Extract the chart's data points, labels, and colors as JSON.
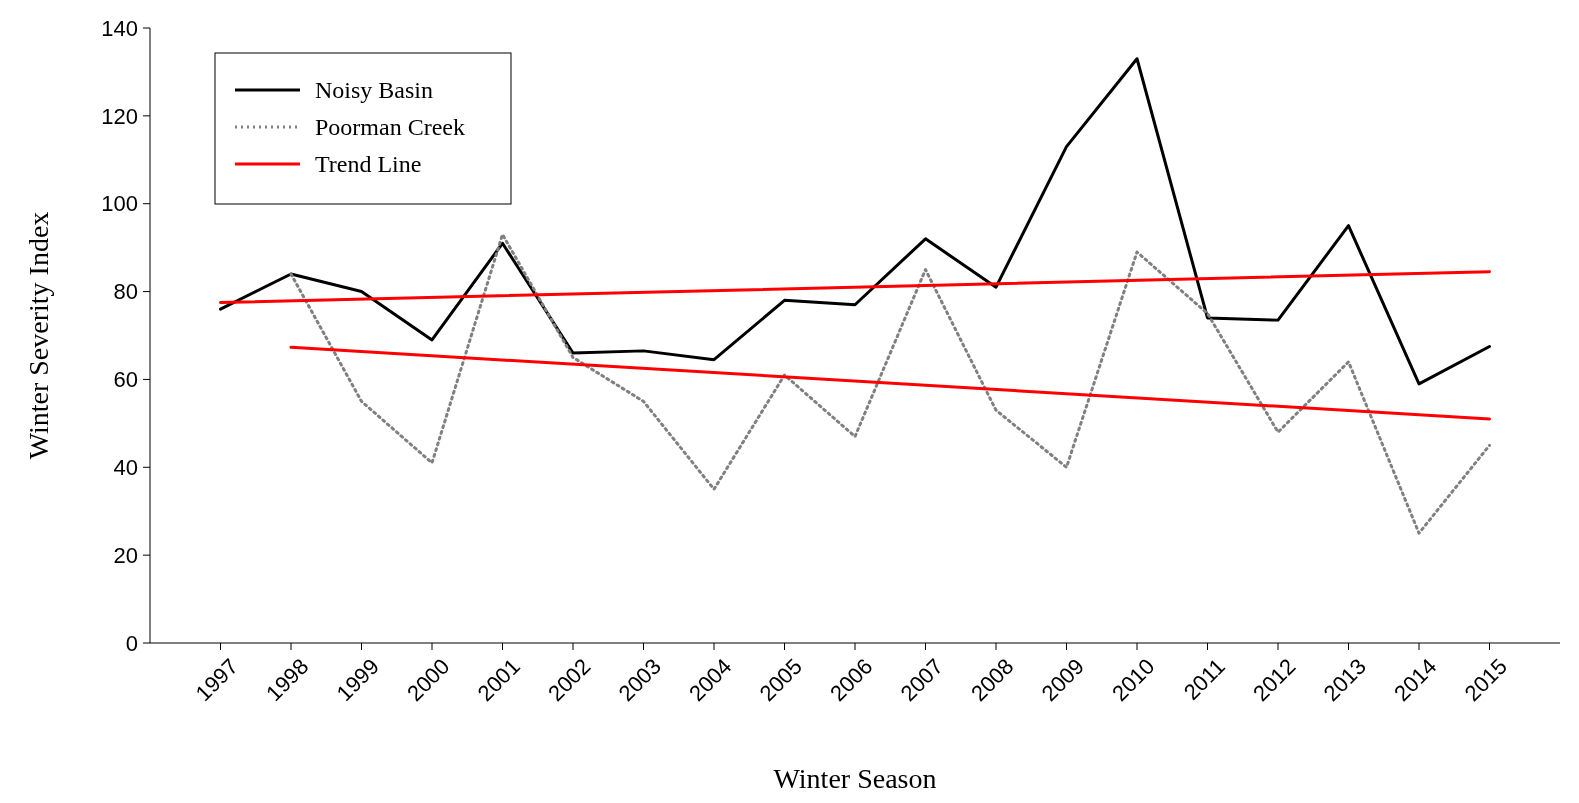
{
  "chart_data": {
    "type": "line",
    "xlabel": "Winter Season",
    "ylabel": "Winter Severity Index",
    "x": [
      1997,
      1998,
      1999,
      2000,
      2001,
      2002,
      2003,
      2004,
      2005,
      2006,
      2007,
      2008,
      2009,
      2010,
      2011,
      2012,
      2013,
      2014,
      2015
    ],
    "xlim": [
      1996,
      2016
    ],
    "xticks": [
      1997,
      1998,
      1999,
      2000,
      2001,
      2002,
      2003,
      2004,
      2005,
      2006,
      2007,
      2008,
      2009,
      2010,
      2011,
      2012,
      2013,
      2014,
      2015
    ],
    "ylim": [
      0,
      140
    ],
    "yticks": [
      0,
      20,
      40,
      60,
      80,
      100,
      120,
      140
    ],
    "grid": false,
    "legend": "top left",
    "series": [
      {
        "name": "Noisy Basin",
        "color": "#000000",
        "line_style": "solid",
        "values": [
          76,
          84,
          80,
          69,
          91,
          66,
          66.5,
          64.5,
          78,
          77,
          92,
          81,
          113,
          133,
          74,
          73.5,
          95,
          59,
          67.5
        ]
      },
      {
        "name": "Poorman Creek",
        "color": "#808080",
        "line_style": "dotted",
        "x": [
          1998,
          1999,
          2000,
          2001,
          2002,
          2003,
          2004,
          2005,
          2006,
          2007,
          2008,
          2009,
          2010,
          2011,
          2012,
          2013,
          2014,
          2015
        ],
        "values": [
          84,
          55,
          41,
          93,
          65,
          55,
          35,
          61,
          47,
          85,
          53,
          40,
          89,
          75,
          48,
          64,
          25,
          45
        ]
      },
      {
        "name": "Trend Line",
        "color": "#ff0000",
        "line_style": "solid",
        "x": [
          1997,
          2015
        ],
        "values": [
          77.5,
          84.5
        ]
      },
      {
        "color": "#ff0000",
        "line_style": "solid",
        "x": [
          1998,
          2015
        ],
        "values": [
          67.3,
          51
        ]
      }
    ]
  }
}
